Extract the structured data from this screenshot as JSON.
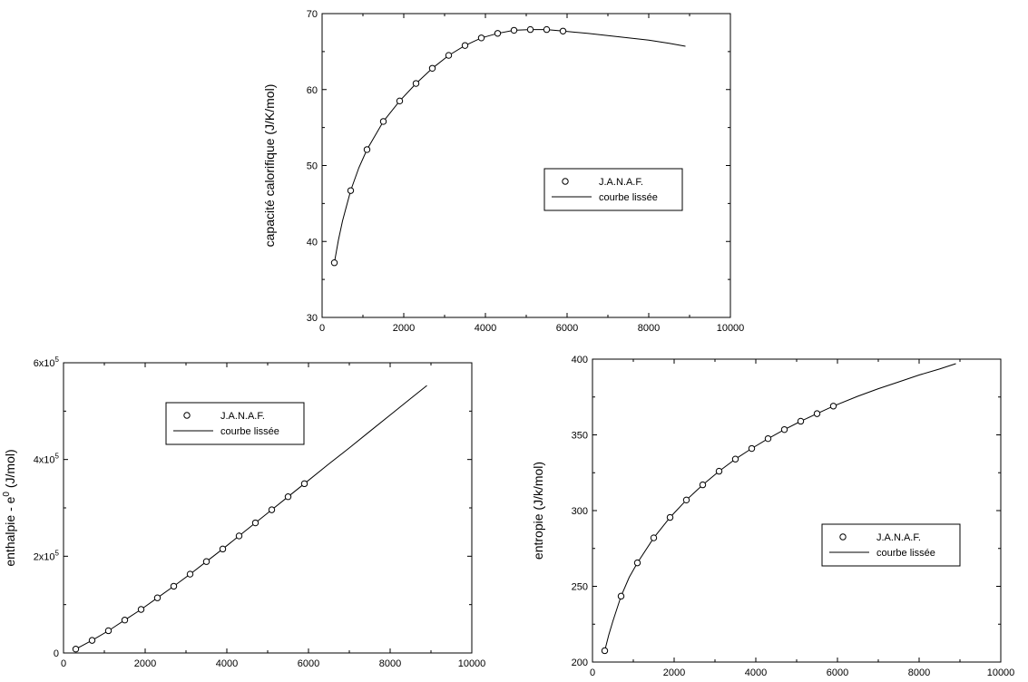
{
  "chart_data": [
    {
      "type": "scatter",
      "title": "",
      "xlabel": "",
      "ylabel": "capacité calorifique (J/K/mol)",
      "xlim": [
        0,
        10000
      ],
      "ylim": [
        30,
        70
      ],
      "xticks": [
        {
          "value": 0,
          "label": "0"
        },
        {
          "value": 2000,
          "label": "2000"
        },
        {
          "value": 4000,
          "label": "4000"
        },
        {
          "value": 6000,
          "label": "6000"
        },
        {
          "value": 8000,
          "label": "8000"
        },
        {
          "value": 10000,
          "label": "10000"
        }
      ],
      "yticks": [
        {
          "value": 30,
          "label": "30"
        },
        {
          "value": 40,
          "label": "40"
        },
        {
          "value": 50,
          "label": "50"
        },
        {
          "value": 60,
          "label": "60"
        },
        {
          "value": 70,
          "label": "70"
        }
      ],
      "grid": false,
      "legend_position": "center-right",
      "series": [
        {
          "name": "J.A.N.A.F.",
          "kind": "markers",
          "marker": "open-circle",
          "x": [
            300,
            700,
            1100,
            1500,
            1900,
            2300,
            2700,
            3100,
            3500,
            3900,
            4300,
            4700,
            5100,
            5500,
            5900
          ],
          "y": [
            37.2,
            46.7,
            52.1,
            55.8,
            58.5,
            60.8,
            62.8,
            64.5,
            65.8,
            66.8,
            67.4,
            67.8,
            67.9,
            67.9,
            67.7
          ]
        },
        {
          "name": "courbe lissée",
          "kind": "line",
          "x": [
            300,
            400,
            500,
            700,
            900,
            1100,
            1500,
            1900,
            2300,
            2700,
            3100,
            3500,
            3900,
            4300,
            4700,
            5100,
            5500,
            5900,
            6500,
            7000,
            7500,
            8000,
            8500,
            8900
          ],
          "y": [
            37.2,
            40.2,
            42.7,
            46.7,
            49.7,
            52.1,
            55.8,
            58.5,
            60.8,
            62.8,
            64.5,
            65.8,
            66.8,
            67.4,
            67.8,
            67.9,
            67.9,
            67.7,
            67.4,
            67.1,
            66.8,
            66.5,
            66.1,
            65.7
          ]
        }
      ]
    },
    {
      "type": "scatter",
      "title": "",
      "xlabel": "",
      "ylabel": "enthalpie - e",
      "ylabel_superscript": "0",
      "ylabel_unit": " (J/mol)",
      "xlim": [
        0,
        10000
      ],
      "ylim": [
        0,
        600000
      ],
      "xticks": [
        {
          "value": 0,
          "label": "0"
        },
        {
          "value": 2000,
          "label": "2000"
        },
        {
          "value": 4000,
          "label": "4000"
        },
        {
          "value": 6000,
          "label": "6000"
        },
        {
          "value": 8000,
          "label": "8000"
        },
        {
          "value": 10000,
          "label": "10000"
        }
      ],
      "yticks": [
        {
          "value": 0,
          "label": "0",
          "exp": ""
        },
        {
          "value": 200000,
          "label": "2x10",
          "exp": "5"
        },
        {
          "value": 400000,
          "label": "4x10",
          "exp": "5"
        },
        {
          "value": 600000,
          "label": "6x10",
          "exp": "5"
        }
      ],
      "grid": false,
      "legend_position": "upper-left",
      "series": [
        {
          "name": "J.A.N.A.F.",
          "kind": "markers",
          "marker": "open-circle",
          "x": [
            300,
            700,
            1100,
            1500,
            1900,
            2300,
            2700,
            3100,
            3500,
            3900,
            4300,
            4700,
            5100,
            5500,
            5900
          ],
          "y": [
            8000,
            26000,
            46000,
            68000,
            90000,
            114000,
            138000,
            163000,
            189000,
            215000,
            242000,
            269000,
            296000,
            323000,
            350000
          ]
        },
        {
          "name": "courbe lissée",
          "kind": "line",
          "x": [
            300,
            700,
            1100,
            1500,
            1900,
            2300,
            2700,
            3100,
            3500,
            3900,
            4300,
            4700,
            5100,
            5500,
            5900,
            6500,
            7000,
            7500,
            8000,
            8500,
            8900
          ],
          "y": [
            8000,
            26000,
            46000,
            68000,
            90000,
            114000,
            138000,
            163000,
            189000,
            215000,
            242000,
            269000,
            296000,
            323000,
            350000,
            391000,
            424000,
            458000,
            492000,
            526000,
            553000
          ]
        }
      ]
    },
    {
      "type": "scatter",
      "title": "",
      "xlabel": "",
      "ylabel": "entropie (J/k/mol)",
      "xlim": [
        0,
        10000
      ],
      "ylim": [
        200,
        400
      ],
      "xticks": [
        {
          "value": 0,
          "label": "0"
        },
        {
          "value": 2000,
          "label": "2000"
        },
        {
          "value": 4000,
          "label": "4000"
        },
        {
          "value": 6000,
          "label": "6000"
        },
        {
          "value": 8000,
          "label": "8000"
        },
        {
          "value": 10000,
          "label": "10000"
        }
      ],
      "yticks": [
        {
          "value": 200,
          "label": "200"
        },
        {
          "value": 250,
          "label": "250"
        },
        {
          "value": 300,
          "label": "300"
        },
        {
          "value": 350,
          "label": "350"
        },
        {
          "value": 400,
          "label": "400"
        }
      ],
      "grid": false,
      "legend_position": "center-right",
      "series": [
        {
          "name": "J.A.N.A.F.",
          "kind": "markers",
          "marker": "open-circle",
          "x": [
            300,
            700,
            1100,
            1500,
            1900,
            2300,
            2700,
            3100,
            3500,
            3900,
            4300,
            4700,
            5100,
            5500,
            5900
          ],
          "y": [
            207.5,
            243.5,
            265.5,
            282.0,
            295.5,
            307.0,
            317.0,
            326.0,
            334.0,
            341.0,
            347.5,
            353.5,
            359.0,
            364.0,
            369.0
          ]
        },
        {
          "name": "courbe lissée",
          "kind": "line",
          "x": [
            300,
            400,
            500,
            700,
            900,
            1100,
            1500,
            1900,
            2300,
            2700,
            3100,
            3500,
            3900,
            4300,
            4700,
            5100,
            5500,
            5900,
            6500,
            7000,
            7500,
            8000,
            8500,
            8900
          ],
          "y": [
            207.5,
            218.0,
            227.0,
            243.5,
            256.0,
            265.5,
            282.0,
            295.5,
            307.0,
            317.0,
            326.0,
            334.0,
            341.0,
            347.5,
            353.5,
            359.0,
            364.0,
            369.0,
            375.5,
            380.5,
            385.0,
            389.5,
            393.5,
            397.0
          ]
        }
      ]
    }
  ]
}
